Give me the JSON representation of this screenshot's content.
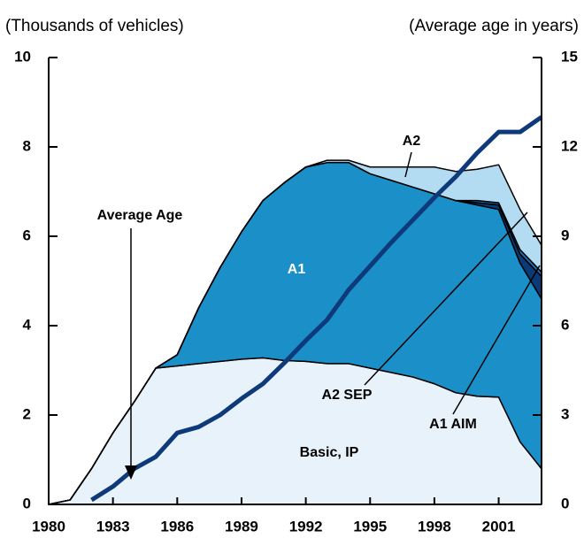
{
  "chart_data": {
    "type": "stacked_area_line",
    "y_axis_label": "(Thousands of vehicles)",
    "y2_axis_label": "(Average age in years)",
    "x": [
      1980,
      1981,
      1982,
      1983,
      1984,
      1985,
      1986,
      1987,
      1988,
      1989,
      1990,
      1991,
      1992,
      1993,
      1994,
      1995,
      1996,
      1997,
      1998,
      1999,
      2000,
      2001,
      2002,
      2003
    ],
    "xlim": [
      1980,
      2003
    ],
    "xticks": [
      1980,
      1983,
      1986,
      1989,
      1992,
      1995,
      1998,
      2001
    ],
    "ylim": [
      0,
      10
    ],
    "yticks": [
      0,
      2,
      4,
      6,
      8,
      10
    ],
    "y2lim": [
      0,
      15
    ],
    "y2ticks": [
      0,
      3,
      6,
      9,
      12,
      15
    ],
    "series": [
      {
        "name": "Basic, IP",
        "color": "#e8f2fb",
        "values": [
          0,
          0.1,
          0.8,
          1.6,
          2.3,
          3.05,
          3.1,
          3.15,
          3.2,
          3.25,
          3.28,
          3.22,
          3.2,
          3.15,
          3.15,
          3.05,
          2.95,
          2.85,
          2.7,
          2.5,
          2.42,
          2.4,
          1.4,
          0.8
        ]
      },
      {
        "name": "A1",
        "color": "#1a8fc8",
        "values": [
          0,
          0,
          0,
          0,
          0,
          0,
          0.25,
          1.25,
          2.1,
          2.85,
          3.52,
          3.98,
          4.35,
          4.5,
          4.5,
          4.35,
          4.3,
          4.25,
          4.25,
          4.3,
          4.28,
          4.2,
          4.0,
          3.8
        ]
      },
      {
        "name": "A1 AIM",
        "color": "#0b3a78",
        "values": [
          0,
          0,
          0,
          0,
          0,
          0,
          0,
          0,
          0,
          0,
          0,
          0,
          0,
          0,
          0,
          0,
          0,
          0,
          0,
          0,
          0.05,
          0.1,
          0.2,
          0.5
        ]
      },
      {
        "name": "A2 SEP",
        "color": "#1b6fb2",
        "values": [
          0,
          0,
          0,
          0,
          0,
          0,
          0,
          0,
          0,
          0,
          0,
          0,
          0,
          0,
          0,
          0,
          0,
          0,
          0,
          0,
          0.05,
          0.05,
          0.1,
          0.1
        ]
      },
      {
        "name": "A2",
        "color": "#b3dcf2",
        "values": [
          0,
          0,
          0,
          0,
          0,
          0,
          0,
          0,
          0,
          0,
          0,
          0,
          0,
          0.05,
          0.05,
          0.15,
          0.3,
          0.45,
          0.6,
          0.65,
          0.7,
          0.85,
          0.9,
          0.6
        ]
      },
      {
        "name": "Average Age",
        "color": "#0e3a7a",
        "axis": "y2",
        "values": [
          null,
          null,
          0.15,
          0.6,
          1.2,
          1.6,
          2.4,
          2.6,
          3.0,
          3.55,
          4.05,
          4.75,
          5.5,
          6.2,
          7.2,
          8.0,
          8.8,
          9.55,
          10.3,
          11.0,
          11.8,
          12.5,
          12.5,
          13.0
        ]
      }
    ]
  }
}
